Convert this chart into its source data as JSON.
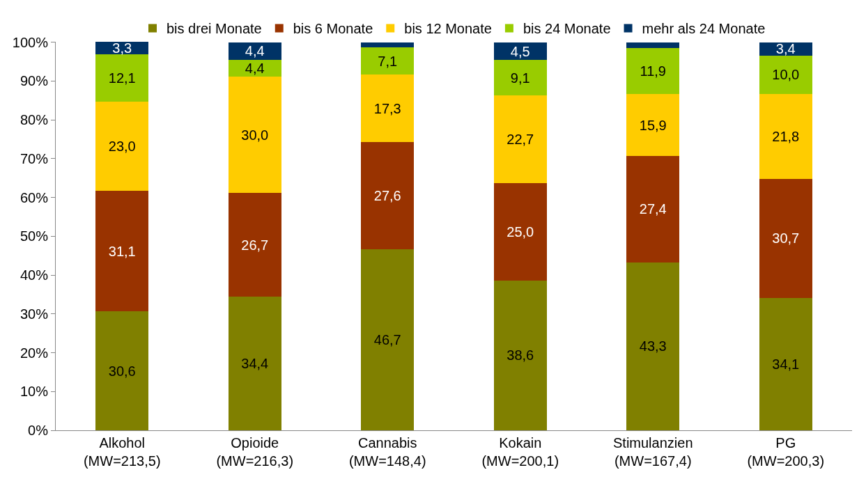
{
  "chart_data": {
    "type": "bar",
    "stacked": true,
    "categories": [
      "Alkohol\n(MW=213,5)",
      "Opioide\n(MW=216,3)",
      "Cannabis\n(MW=148,4)",
      "Kokain\n(MW=200,1)",
      "Stimulanzien\n(MW=167,4)",
      "PG\n(MW=200,3)"
    ],
    "series": [
      {
        "name": "bis drei Monate",
        "color": "#808000",
        "values": [
          30.6,
          34.4,
          46.7,
          38.6,
          43.3,
          34.1
        ],
        "value_labels": [
          "30,6",
          "34,4",
          "46,7",
          "38,6",
          "43,3",
          "34,1"
        ]
      },
      {
        "name": "bis 6 Monate",
        "color": "#993300",
        "values": [
          31.1,
          26.7,
          27.6,
          25.0,
          27.4,
          30.7
        ],
        "value_labels": [
          "31,1",
          "26,7",
          "27,6",
          "25,0",
          "27,4",
          "30,7"
        ]
      },
      {
        "name": "bis 12 Monate",
        "color": "#ffcc00",
        "values": [
          23.0,
          30.0,
          17.3,
          22.7,
          15.9,
          21.8
        ],
        "value_labels": [
          "23,0",
          "30,0",
          "17,3",
          "22,7",
          "15,9",
          "21,8"
        ]
      },
      {
        "name": "bis 24 Monate",
        "color": "#99cc00",
        "values": [
          12.1,
          4.4,
          7.1,
          9.1,
          11.9,
          10.0
        ],
        "value_labels": [
          "12,1",
          "4,4",
          "7,1",
          "9,1",
          "11,9",
          "10,0"
        ]
      },
      {
        "name": "mehr als 24 Monate",
        "color": "#003366",
        "values": [
          3.3,
          4.4,
          1.3,
          4.5,
          1.5,
          3.4
        ],
        "value_labels": [
          "3,3",
          "4,4",
          null,
          "4,5",
          null,
          "3,4"
        ]
      }
    ],
    "ylim": [
      0,
      100.1
    ],
    "yticks": [
      {
        "value": 0,
        "label": "0%"
      },
      {
        "value": 10,
        "label": "10%"
      },
      {
        "value": 20,
        "label": "20%"
      },
      {
        "value": 30,
        "label": "30%"
      },
      {
        "value": 40,
        "label": "40%"
      },
      {
        "value": 50,
        "label": "50%"
      },
      {
        "value": 60,
        "label": "60%"
      },
      {
        "value": 70,
        "label": "70%"
      },
      {
        "value": 80,
        "label": "80%"
      },
      {
        "value": 90,
        "label": "90%"
      },
      {
        "value": 100,
        "label": "100%"
      }
    ],
    "legend": "top"
  }
}
